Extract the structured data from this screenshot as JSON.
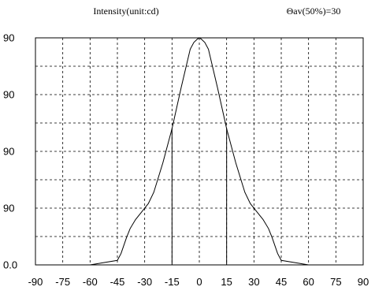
{
  "chart_data": {
    "type": "line",
    "header_left": "Intensity(unit:cd)",
    "header_right": "Θav(50%)=30",
    "x_ticks": [
      "-90",
      "-75",
      "-60",
      "-45",
      "-30",
      "-15",
      "0",
      "15",
      "30",
      "45",
      "60",
      "75",
      "90"
    ],
    "y_ticks": [
      "0.0",
      "90",
      "90",
      "90",
      "90"
    ],
    "xlim": [
      -90,
      90
    ],
    "ylim": [
      0,
      1.0
    ],
    "grid": true,
    "series": [
      {
        "x": [
          -60,
          -45,
          -43,
          -40,
          -38,
          -35,
          -32,
          -28,
          -25,
          -20,
          -15,
          -10,
          -5,
          -3,
          -1,
          0,
          1,
          3,
          5,
          10,
          15,
          20,
          25,
          28,
          32,
          35,
          38,
          40,
          43,
          45,
          60
        ],
        "y": [
          0.0,
          0.02,
          0.05,
          0.12,
          0.16,
          0.2,
          0.23,
          0.27,
          0.32,
          0.45,
          0.6,
          0.78,
          0.95,
          0.98,
          0.995,
          1.0,
          0.995,
          0.98,
          0.95,
          0.78,
          0.6,
          0.45,
          0.32,
          0.27,
          0.23,
          0.2,
          0.16,
          0.12,
          0.05,
          0.02,
          0.0
        ]
      }
    ],
    "markers": [
      {
        "x": -15
      },
      {
        "x": 15
      }
    ]
  }
}
